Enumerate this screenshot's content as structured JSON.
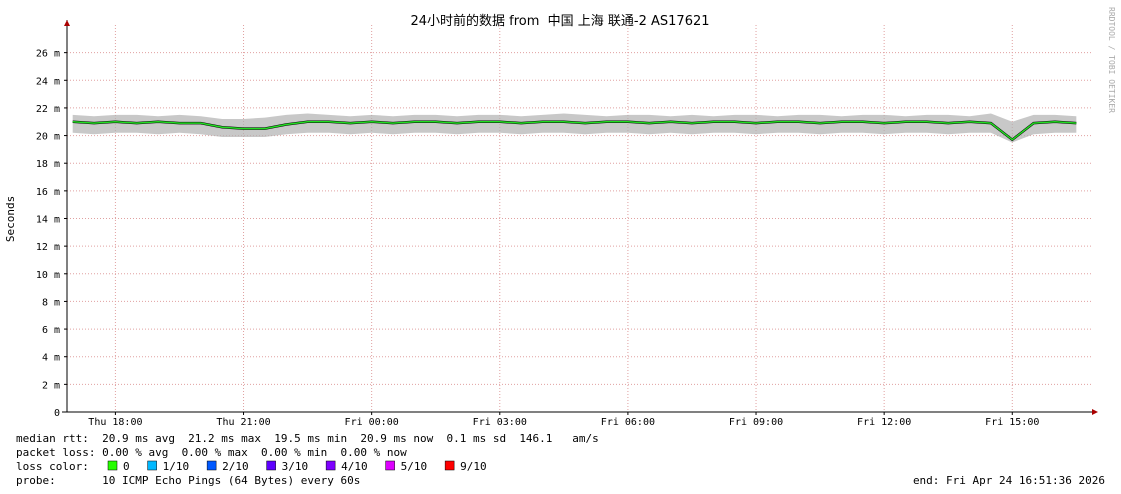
{
  "chart_data": {
    "type": "line",
    "title": "24小时前的数据 from  中国 上海 联通-2 AS17621",
    "y_label": "Seconds",
    "watermark": "RRDTOOL / TOBI OETIKER",
    "xlim": [
      "Thu 16:52",
      "Fri 16:52"
    ],
    "xticks": [
      "Thu 18:00",
      "Thu 21:00",
      "Fri 00:00",
      "Fri 03:00",
      "Fri 06:00",
      "Fri 09:00",
      "Fri 12:00",
      "Fri 15:00"
    ],
    "ylim": [
      0,
      0.028
    ],
    "yticks": [
      {
        "value": 0,
        "label": "0"
      },
      {
        "value": 0.002,
        "label": "2 m"
      },
      {
        "value": 0.004,
        "label": "4 m"
      },
      {
        "value": 0.006,
        "label": "6 m"
      },
      {
        "value": 0.008,
        "label": "8 m"
      },
      {
        "value": 0.01,
        "label": "10 m"
      },
      {
        "value": 0.012,
        "label": "12 m"
      },
      {
        "value": 0.014,
        "label": "14 m"
      },
      {
        "value": 0.016,
        "label": "16 m"
      },
      {
        "value": 0.018,
        "label": "18 m"
      },
      {
        "value": 0.02,
        "label": "20 m"
      },
      {
        "value": 0.022,
        "label": "22 m"
      },
      {
        "value": 0.024,
        "label": "24 m"
      },
      {
        "value": 0.026,
        "label": "26 m"
      }
    ],
    "grid": true,
    "x": [
      "Thu 17:00",
      "Thu 17:30",
      "Thu 18:00",
      "Thu 18:30",
      "Thu 19:00",
      "Thu 19:30",
      "Thu 20:00",
      "Thu 20:30",
      "Thu 21:00",
      "Thu 21:30",
      "Thu 22:00",
      "Thu 22:30",
      "Thu 23:00",
      "Thu 23:30",
      "Fri 00:00",
      "Fri 00:30",
      "Fri 01:00",
      "Fri 01:30",
      "Fri 02:00",
      "Fri 02:30",
      "Fri 03:00",
      "Fri 03:30",
      "Fri 04:00",
      "Fri 04:30",
      "Fri 05:00",
      "Fri 05:30",
      "Fri 06:00",
      "Fri 06:30",
      "Fri 07:00",
      "Fri 07:30",
      "Fri 08:00",
      "Fri 08:30",
      "Fri 09:00",
      "Fri 09:30",
      "Fri 10:00",
      "Fri 10:30",
      "Fri 11:00",
      "Fri 11:30",
      "Fri 12:00",
      "Fri 12:30",
      "Fri 13:00",
      "Fri 13:30",
      "Fri 14:00",
      "Fri 14:30",
      "Fri 15:00",
      "Fri 15:30",
      "Fri 16:00",
      "Fri 16:30"
    ],
    "band": {
      "color": "#b0b0b0",
      "low": [
        0.0202,
        0.0201,
        0.0202,
        0.0202,
        0.0201,
        0.0202,
        0.0201,
        0.0199,
        0.0199,
        0.0199,
        0.0201,
        0.0202,
        0.0202,
        0.0201,
        0.0202,
        0.0201,
        0.0202,
        0.0202,
        0.0201,
        0.0202,
        0.0202,
        0.0201,
        0.0202,
        0.0202,
        0.0201,
        0.0202,
        0.0202,
        0.0201,
        0.0202,
        0.0201,
        0.0202,
        0.0202,
        0.0201,
        0.0202,
        0.0202,
        0.0201,
        0.0202,
        0.0202,
        0.0201,
        0.0202,
        0.0202,
        0.0201,
        0.0202,
        0.0202,
        0.0195,
        0.0201,
        0.0202,
        0.0202
      ],
      "high": [
        0.0215,
        0.0214,
        0.0215,
        0.0215,
        0.0214,
        0.0215,
        0.0214,
        0.0212,
        0.0212,
        0.0213,
        0.0215,
        0.0216,
        0.0215,
        0.0214,
        0.0215,
        0.0214,
        0.0215,
        0.0215,
        0.0214,
        0.0215,
        0.0215,
        0.0214,
        0.0215,
        0.0216,
        0.0215,
        0.0214,
        0.0215,
        0.0215,
        0.0214,
        0.0215,
        0.0214,
        0.0215,
        0.0215,
        0.0214,
        0.0215,
        0.0215,
        0.0214,
        0.0215,
        0.0215,
        0.0214,
        0.0215,
        0.0215,
        0.0214,
        0.0216,
        0.021,
        0.0215,
        0.0215,
        0.0214
      ]
    },
    "series": [
      {
        "name": "median rtt",
        "color": "#22dd22",
        "values": [
          0.021,
          0.0209,
          0.021,
          0.0209,
          0.021,
          0.0209,
          0.0209,
          0.0206,
          0.0205,
          0.0205,
          0.0208,
          0.021,
          0.021,
          0.0209,
          0.021,
          0.0209,
          0.021,
          0.021,
          0.0209,
          0.021,
          0.021,
          0.0209,
          0.021,
          0.021,
          0.0209,
          0.021,
          0.021,
          0.0209,
          0.021,
          0.0209,
          0.021,
          0.021,
          0.0209,
          0.021,
          0.021,
          0.0209,
          0.021,
          0.021,
          0.0209,
          0.021,
          0.021,
          0.0209,
          0.021,
          0.0209,
          0.0197,
          0.0209,
          0.021,
          0.0209
        ]
      }
    ]
  },
  "stats": {
    "median": "median rtt:  20.9 ms avg  21.2 ms max  19.5 ms min  20.9 ms now  0.1 ms sd  146.1   am/s",
    "loss": "packet loss: 0.00 % avg  0.00 % max  0.00 % min  0.00 % now",
    "loss_color_label": "loss color:",
    "loss_colors": [
      {
        "label": "0",
        "color": "#26ff00"
      },
      {
        "label": "1/10",
        "color": "#00b8ff"
      },
      {
        "label": "2/10",
        "color": "#0059ff"
      },
      {
        "label": "3/10",
        "color": "#5e00ff"
      },
      {
        "label": "4/10",
        "color": "#7e00ff"
      },
      {
        "label": "5/10",
        "color": "#dd00ff"
      },
      {
        "label": "9/10",
        "color": "#ff0000"
      }
    ],
    "probe": "probe:       10 ICMP Echo Pings (64 Bytes) every 60s",
    "end": "end: Fri Apr 24 16:51:36 2026"
  }
}
